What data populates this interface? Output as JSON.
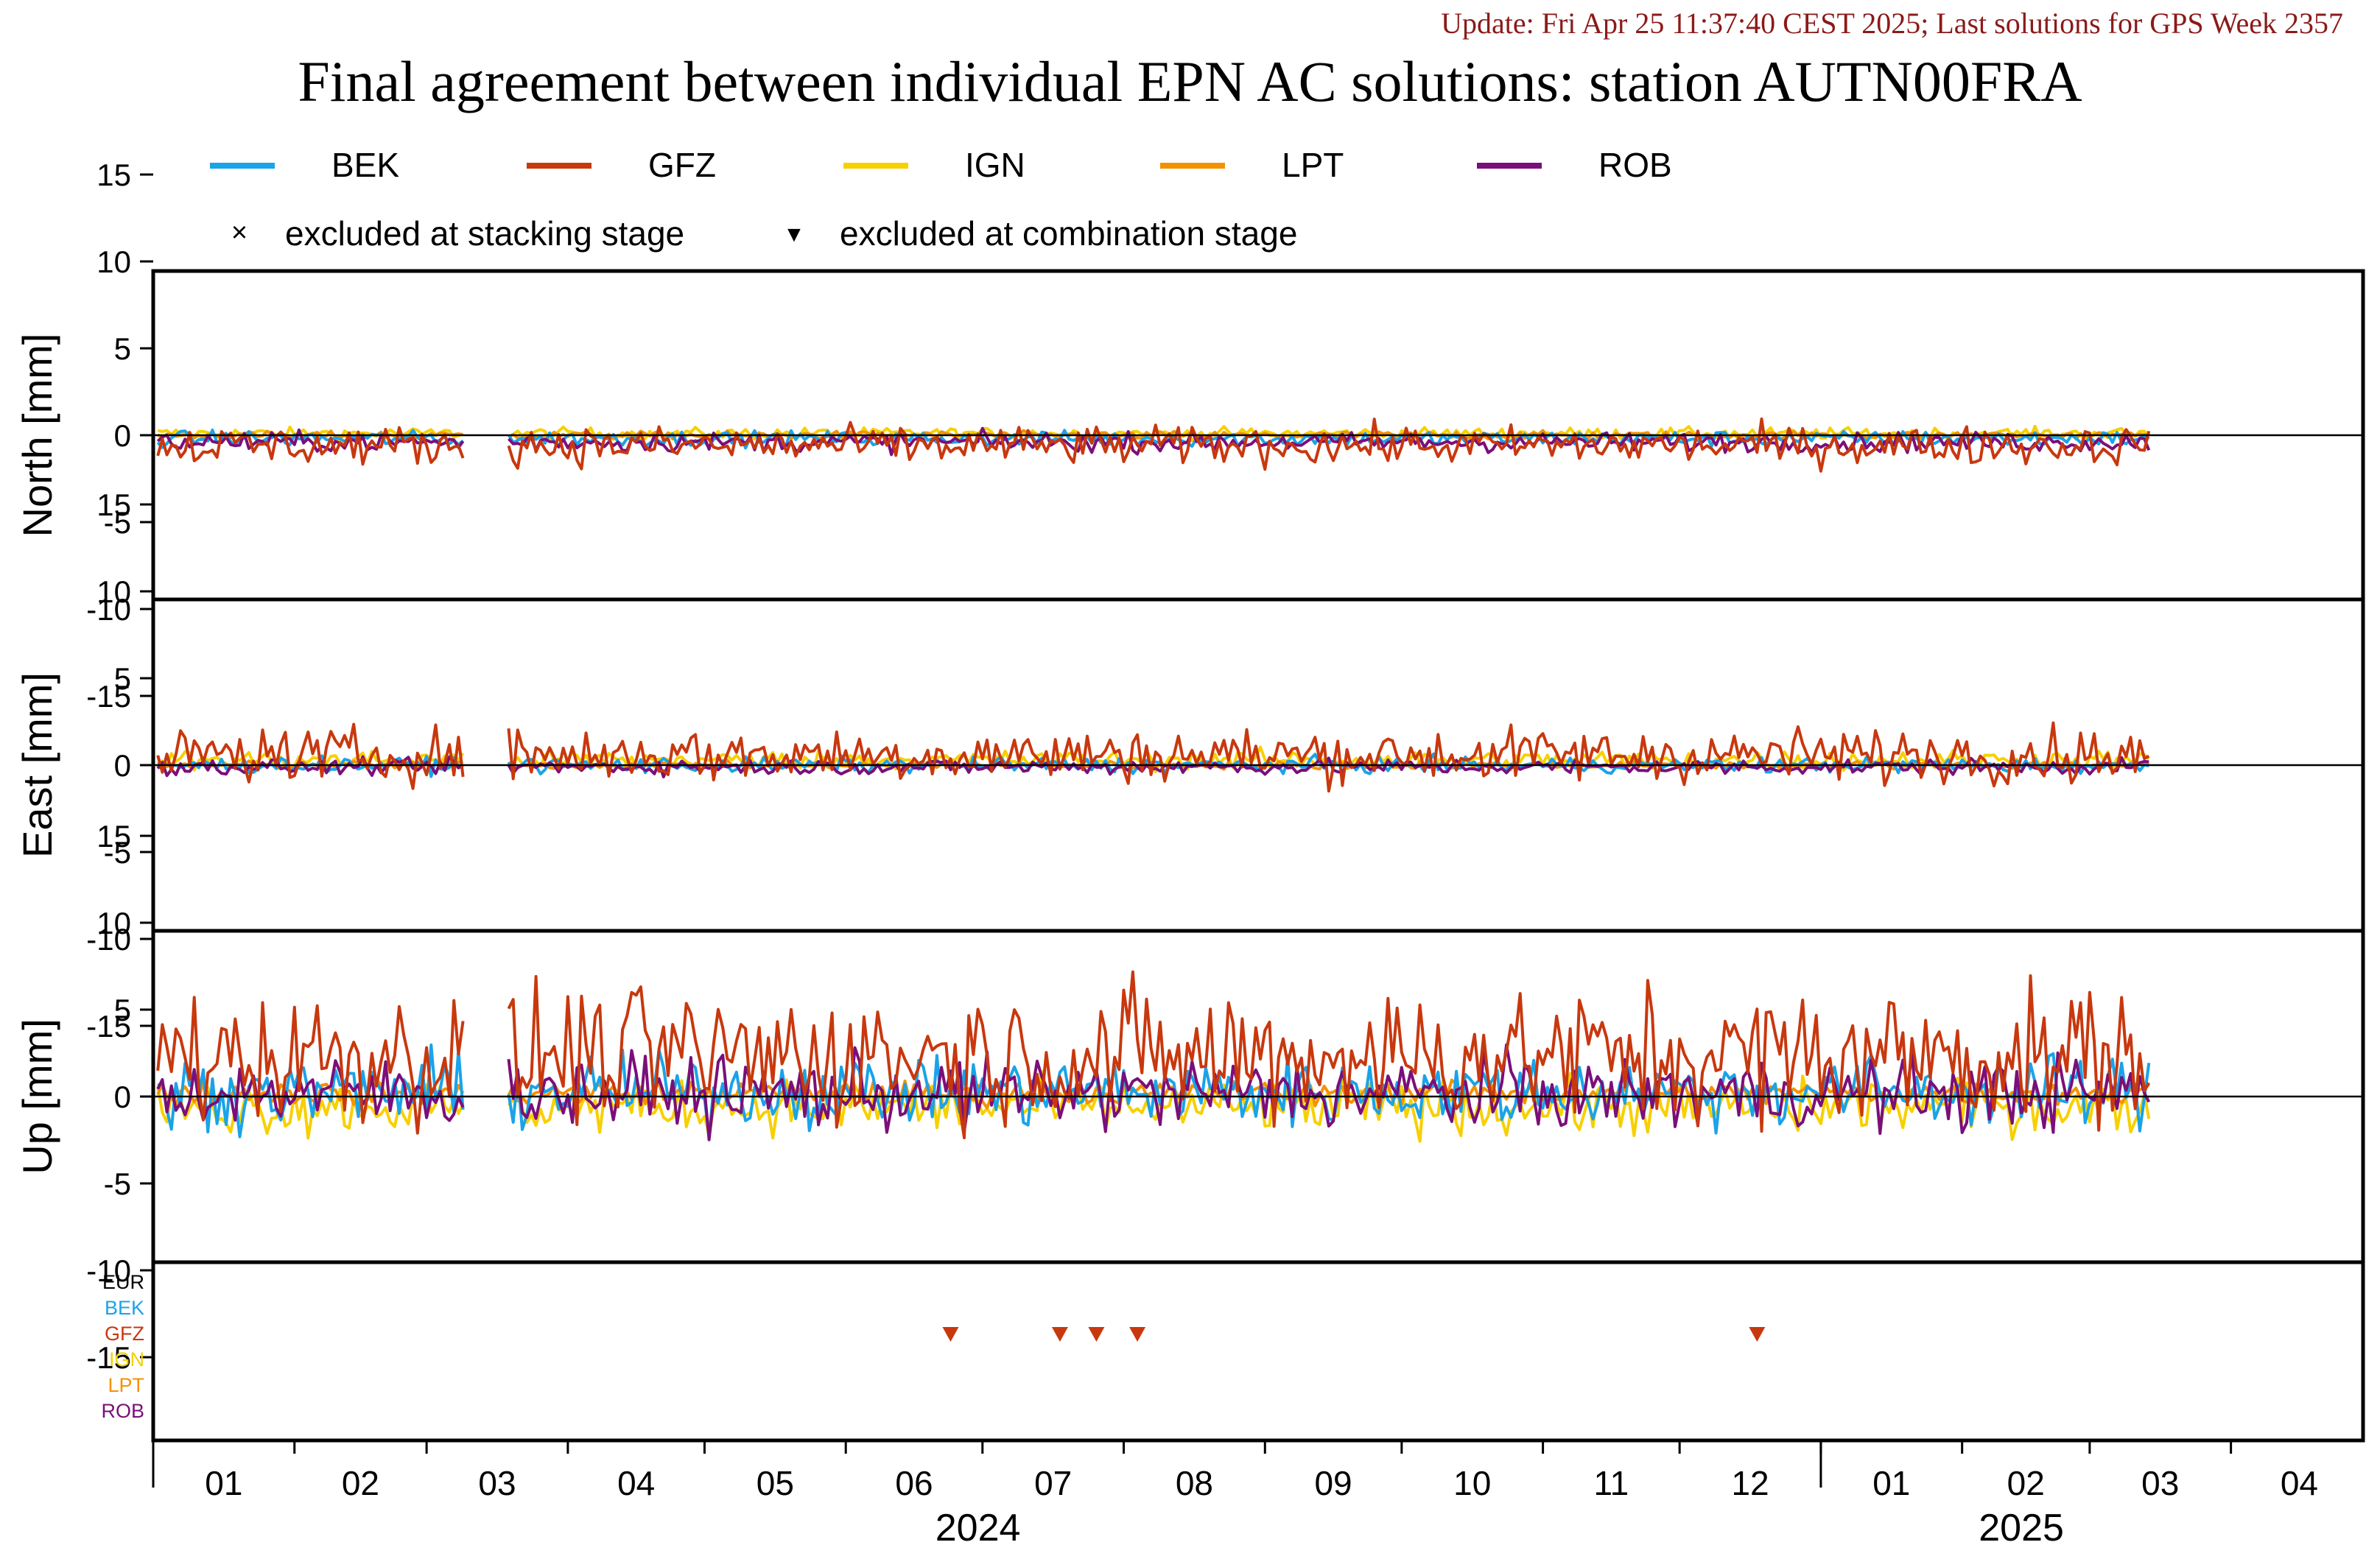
{
  "header": {
    "update": "Update: Fri Apr 25 11:37:40 CEST 2025; Last solutions for GPS Week 2357",
    "title": "Final agreement between individual EPN AC solutions: station AUTN00FRA"
  },
  "legend": {
    "series": [
      {
        "name": "BEK",
        "color": "#1aa3e8"
      },
      {
        "name": "GFZ",
        "color": "#c8380e"
      },
      {
        "name": "IGN",
        "color": "#f7d000"
      },
      {
        "name": "LPT",
        "color": "#f39200"
      },
      {
        "name": "ROB",
        "color": "#7a0f7a"
      }
    ],
    "markers": [
      {
        "symbol": "×",
        "label": "excluded at stacking stage"
      },
      {
        "symbol": "▼",
        "label": "excluded at combination stage"
      }
    ]
  },
  "chart_data": {
    "type": "line",
    "x_axis": {
      "start": "2024-01-01",
      "end": "2025-04-30",
      "month_labels": [
        "01",
        "02",
        "03",
        "04",
        "05",
        "06",
        "07",
        "08",
        "09",
        "10",
        "11",
        "12",
        "01",
        "02",
        "03",
        "04"
      ],
      "year_labels": [
        {
          "label": "2024",
          "at": "2024-06-30"
        },
        {
          "label": "2025",
          "at": "2025-02-14"
        }
      ],
      "year_boundary": "2025-01-01"
    },
    "y_ticks": [
      15,
      10,
      5,
      0,
      -5,
      -10,
      -15
    ],
    "ylim": [
      -19,
      19
    ],
    "data_gap": [
      "2024-03-10",
      "2024-03-18"
    ],
    "data_end": "2025-03-14",
    "panels": [
      {
        "ylabel": "North [mm]",
        "amplitudes": {
          "BEK": 0.4,
          "GFZ": 1.0,
          "IGN": 0.3,
          "LPT": 0.2,
          "ROB": 0.5
        },
        "offsets": {
          "BEK": -0.2,
          "GFZ": -0.6,
          "IGN": 0.1,
          "LPT": 0.0,
          "ROB": -0.4
        }
      },
      {
        "ylabel": "East [mm]",
        "amplitudes": {
          "BEK": 0.4,
          "GFZ": 1.4,
          "IGN": 0.5,
          "LPT": 0.2,
          "ROB": 0.4
        },
        "offsets": {
          "BEK": 0.0,
          "GFZ": 0.6,
          "IGN": 0.3,
          "LPT": 0.0,
          "ROB": -0.1
        }
      },
      {
        "ylabel": "Up [mm]",
        "amplitudes": {
          "BEK": 1.8,
          "GFZ": 3.5,
          "IGN": 1.4,
          "LPT": 0.6,
          "ROB": 1.9
        },
        "offsets": {
          "BEK": 0.3,
          "GFZ": 2.4,
          "IGN": -0.6,
          "LPT": 0.2,
          "ROB": 0.2
        }
      }
    ],
    "exclusion_panel": {
      "labels": [
        {
          "name": "EUR",
          "color": "#000000"
        },
        {
          "name": "BEK",
          "color": "#1aa3e8"
        },
        {
          "name": "GFZ",
          "color": "#c8380e"
        },
        {
          "name": "IGN",
          "color": "#f7d000"
        },
        {
          "name": "LPT",
          "color": "#f39200"
        },
        {
          "name": "ROB",
          "color": "#7a0f7a"
        }
      ],
      "excluded_at_combination": [
        {
          "ac": "GFZ",
          "date": "2024-06-24"
        },
        {
          "ac": "GFZ",
          "date": "2024-07-18"
        },
        {
          "ac": "GFZ",
          "date": "2024-07-26"
        },
        {
          "ac": "GFZ",
          "date": "2024-08-04"
        },
        {
          "ac": "GFZ",
          "date": "2024-12-18"
        }
      ]
    }
  }
}
